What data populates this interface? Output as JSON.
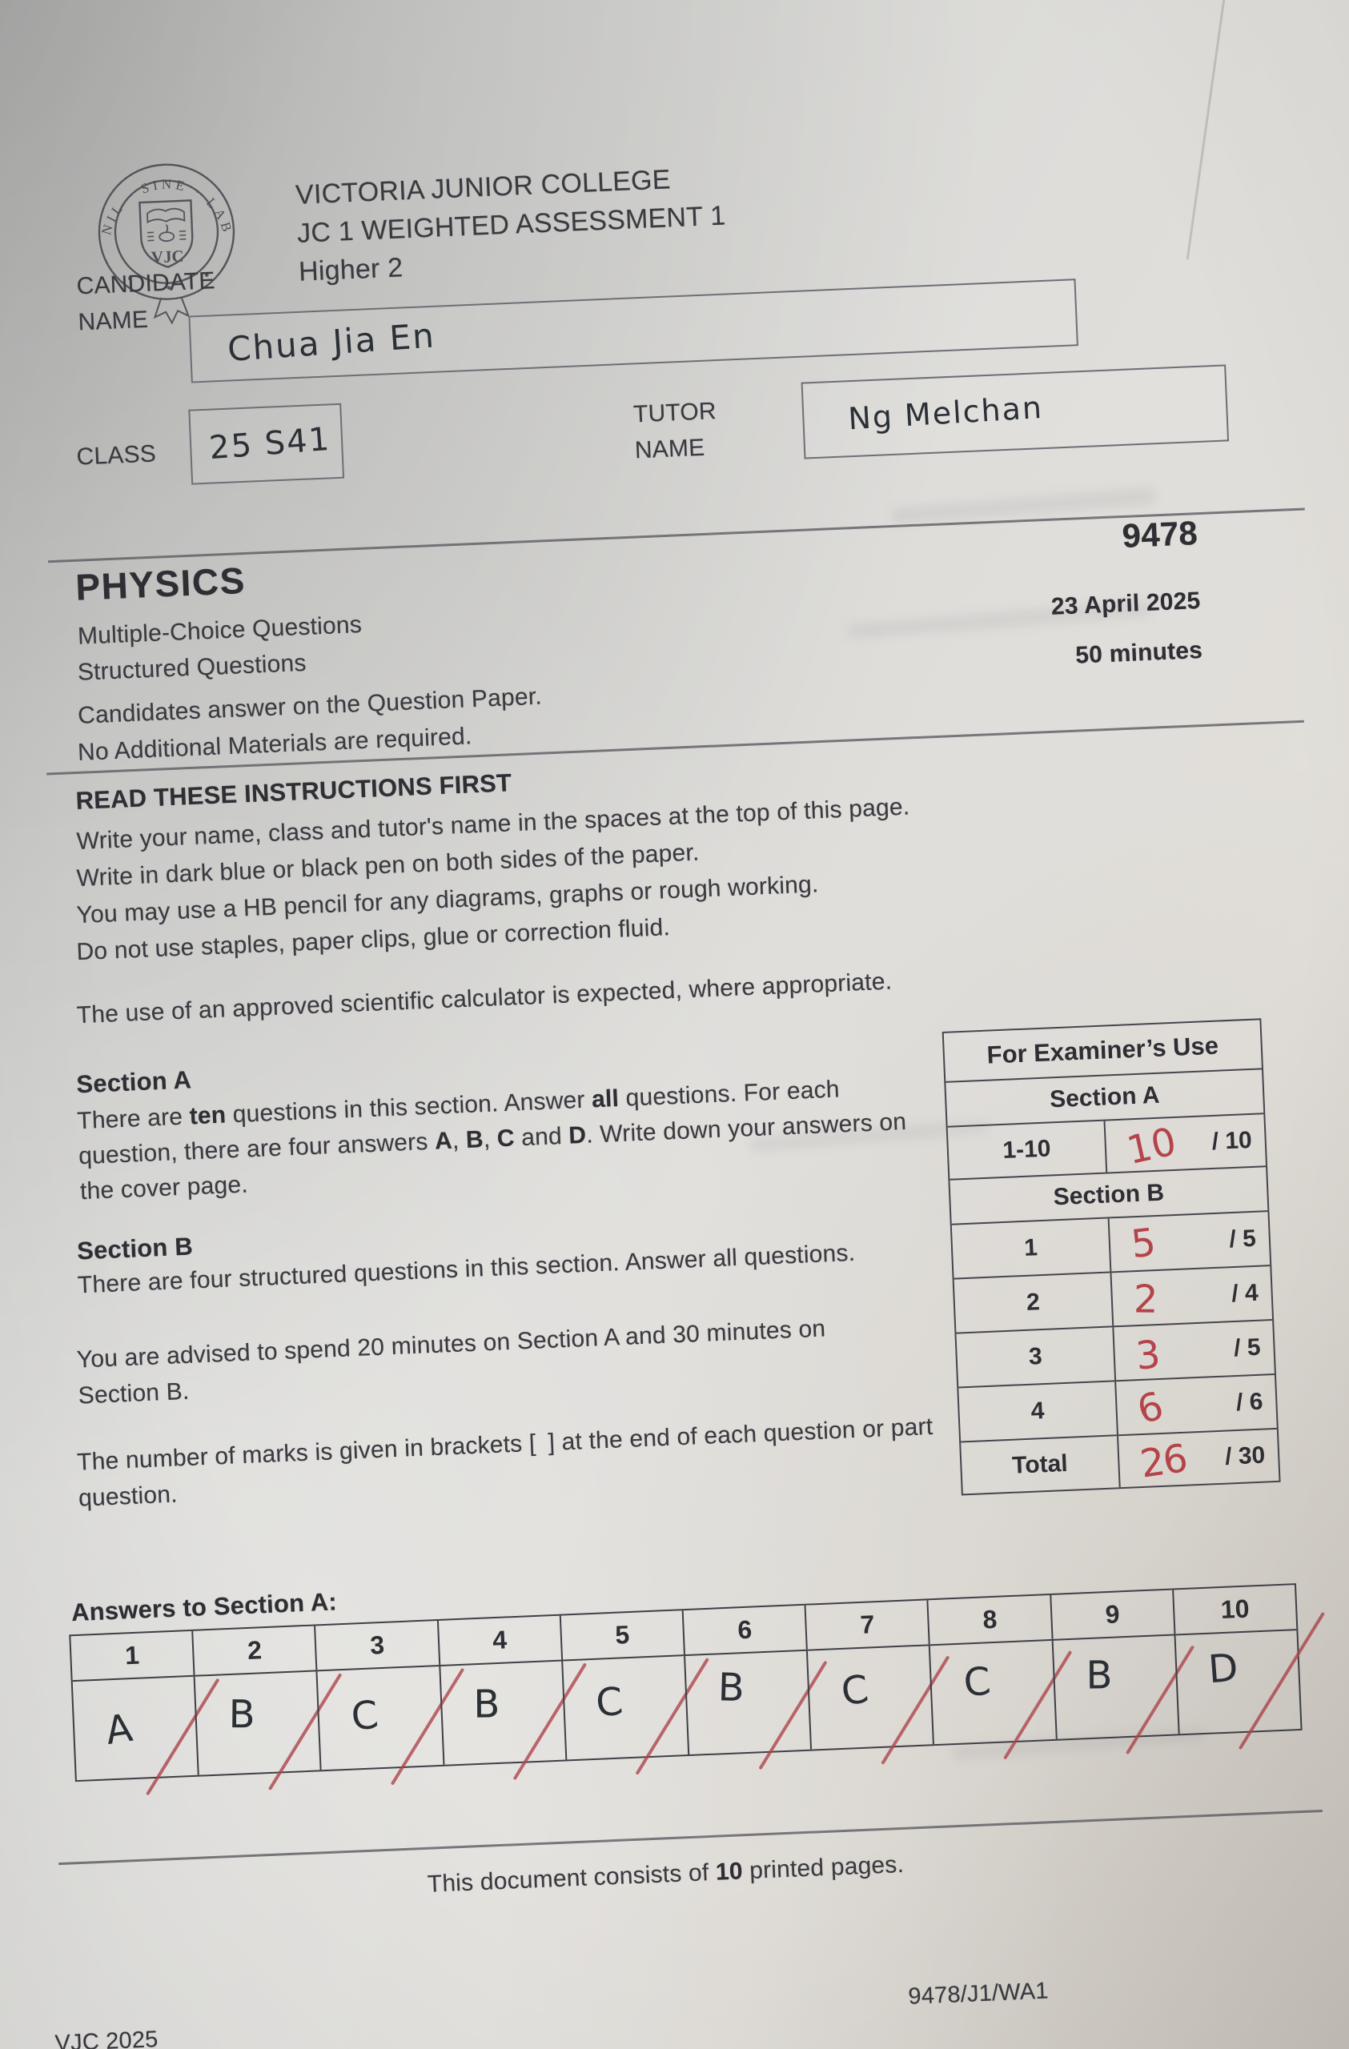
{
  "header": {
    "school_line1": "VICTORIA JUNIOR COLLEGE",
    "school_line2": "JC 1 WEIGHTED ASSESSMENT 1",
    "school_line3": "Higher 2"
  },
  "logo": {
    "motto": "NIL · SINE · LABORE",
    "initials": "VJC"
  },
  "fields": {
    "candidate_label": "CANDIDATE\nNAME",
    "candidate_value": "Chua Jia En",
    "class_label": "CLASS",
    "class_value": "25 S41",
    "tutor_label": "TUTOR\nNAME",
    "tutor_value": "Ng  Melchan"
  },
  "exam": {
    "subject": "PHYSICS",
    "code": "9478",
    "date": "23 April 2025",
    "duration": "50 minutes",
    "type1": "Multiple-Choice Questions",
    "type2": "Structured Questions",
    "answer_note": "Candidates answer on the Question Paper.",
    "materials_note": "No Additional Materials are required."
  },
  "instructions": {
    "title": "READ THESE INSTRUCTIONS FIRST",
    "lines": [
      "Write your name, class and tutor's name in the spaces at the top of this page.",
      "Write in dark blue or black pen on both sides of the paper.",
      "You may use a HB pencil for any diagrams, graphs or rough working.",
      "Do not use staples, paper clips, glue or correction fluid."
    ],
    "calculator": "The use of an approved scientific calculator is expected, where appropriate."
  },
  "section_a": {
    "title": "Section A",
    "segments": [
      {
        "t": "There are "
      },
      {
        "t": "ten",
        "b": true
      },
      {
        "t": " questions in this section. Answer "
      },
      {
        "t": "all",
        "b": true
      },
      {
        "t": " questions. For each question, there are four answers "
      },
      {
        "t": "A",
        "b": true
      },
      {
        "t": ", "
      },
      {
        "t": "B",
        "b": true
      },
      {
        "t": ", "
      },
      {
        "t": "C",
        "b": true
      },
      {
        "t": " and "
      },
      {
        "t": "D",
        "b": true
      },
      {
        "t": ". Write down your answers on the cover page."
      }
    ]
  },
  "section_b": {
    "title": "Section B",
    "text": "There are four structured questions in this section. Answer all questions."
  },
  "advice": "You are advised to spend 20 minutes on Section A and 30 minutes on Section B.",
  "marks_note": "The number of marks is given in brackets [ ] at the end of each question or part question.",
  "examiner": {
    "title": "For Examiner’s Use",
    "section_a": "Section A",
    "section_b": "Section B",
    "rows": [
      {
        "label": "1-10",
        "mark": "10",
        "out_of": "/ 10"
      },
      {
        "label": "1",
        "mark": "5",
        "out_of": "/ 5"
      },
      {
        "label": "2",
        "mark": "2",
        "out_of": "/ 4"
      },
      {
        "label": "3",
        "mark": "3",
        "out_of": "/ 5"
      },
      {
        "label": "4",
        "mark": "6",
        "out_of": "/ 6"
      },
      {
        "label": "Total",
        "mark": "26",
        "out_of": "/ 30"
      }
    ]
  },
  "answers": {
    "title": "Answers to Section A:",
    "numbers": [
      "1",
      "2",
      "3",
      "4",
      "5",
      "6",
      "7",
      "8",
      "9",
      "10"
    ],
    "values": [
      "A",
      "B",
      "C",
      "B",
      "C",
      "B",
      "C",
      "C",
      "B",
      "D"
    ]
  },
  "footer": {
    "doc_segments": [
      {
        "t": "This document consists of "
      },
      {
        "t": "10",
        "b": true
      },
      {
        "t": " printed pages."
      }
    ],
    "center_code": "9478/J1/WA1",
    "bottom_left": "VJC 2025"
  }
}
